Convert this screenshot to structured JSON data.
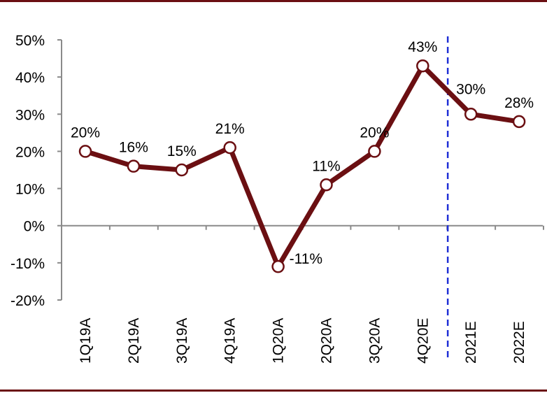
{
  "chart_data": {
    "type": "line",
    "title": "",
    "xlabel": "",
    "ylabel": "",
    "categories": [
      "1Q19A",
      "2Q19A",
      "3Q19A",
      "4Q19A",
      "1Q20A",
      "2Q20A",
      "3Q20A",
      "4Q20E",
      "2021E",
      "2022E"
    ],
    "series": [
      {
        "values": [
          20,
          16,
          15,
          21,
          -11,
          11,
          20,
          43,
          30,
          28
        ],
        "labels": [
          "20%",
          "16%",
          "15%",
          "21%",
          "-11%",
          "11%",
          "20%",
          "43%",
          "30%",
          "28%"
        ],
        "color": "#6b0f12"
      }
    ],
    "ylim": [
      -20,
      50
    ],
    "yticks": [
      -20,
      -10,
      0,
      10,
      20,
      30,
      40,
      50
    ],
    "ytick_labels": [
      "-20%",
      "-10%",
      "0%",
      "10%",
      "20%",
      "30%",
      "40%",
      "50%"
    ],
    "y_format": "percent",
    "grid": false,
    "legend": "none",
    "forecast_divider": {
      "after_category": "4Q20E",
      "color": "#1f2fd6",
      "style": "dashed"
    },
    "axis_color": "#8a8a8a",
    "frame_color": "#6b0f12"
  }
}
